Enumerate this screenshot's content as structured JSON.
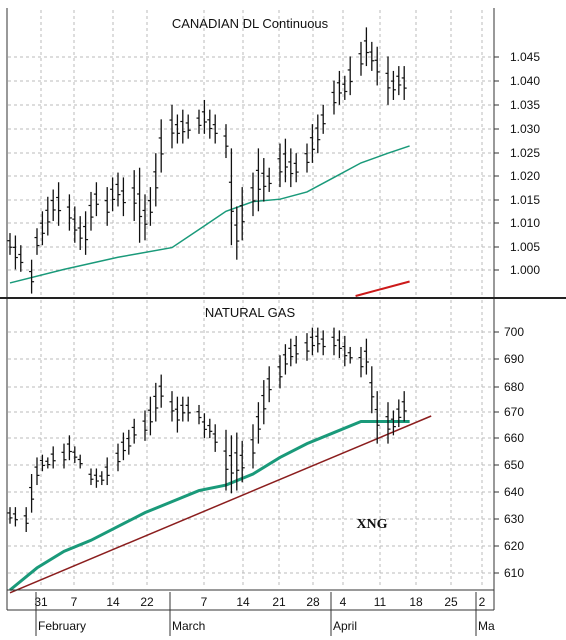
{
  "chart_data": [
    {
      "type": "ohlc",
      "title": "CANADIAN DL Continuous",
      "ylim": [
        0.9935,
        1.053
      ],
      "yticks": [
        "1.045",
        "1.040",
        "1.035",
        "1.030",
        "1.025",
        "1.020",
        "1.015",
        "1.010",
        "1.005",
        "1.000"
      ],
      "grid": true,
      "bars": [
        {
          "x": 0,
          "h": 1.0065,
          "l": 1.002
        },
        {
          "x": 1,
          "h": 1.006,
          "l": 0.999
        },
        {
          "x": 2,
          "h": 1.004,
          "l": 0.9985
        },
        {
          "x": 4,
          "h": 1.001,
          "l": 0.994
        },
        {
          "x": 5,
          "h": 1.0075,
          "l": 1.002
        },
        {
          "x": 6,
          "h": 1.011,
          "l": 1.004
        },
        {
          "x": 7,
          "h": 1.014,
          "l": 1.006
        },
        {
          "x": 8,
          "h": 1.0155,
          "l": 1.009
        },
        {
          "x": 9,
          "h": 1.017,
          "l": 1.008
        },
        {
          "x": 11,
          "h": 1.0145,
          "l": 1.007
        },
        {
          "x": 12,
          "h": 1.012,
          "l": 1.0045
        },
        {
          "x": 13,
          "h": 1.01,
          "l": 1.003
        },
        {
          "x": 14,
          "h": 1.011,
          "l": 1.002
        },
        {
          "x": 15,
          "h": 1.015,
          "l": 1.007
        },
        {
          "x": 16,
          "h": 1.017,
          "l": 1.01
        },
        {
          "x": 18,
          "h": 1.016,
          "l": 1.008
        },
        {
          "x": 19,
          "h": 1.018,
          "l": 1.011
        },
        {
          "x": 20,
          "h": 1.019,
          "l": 1.012
        },
        {
          "x": 21,
          "h": 1.018,
          "l": 1.01
        },
        {
          "x": 23,
          "h": 1.0195,
          "l": 1.009
        },
        {
          "x": 24,
          "h": 1.02,
          "l": 1.0045
        },
        {
          "x": 25,
          "h": 1.0145,
          "l": 1.005
        },
        {
          "x": 26,
          "h": 1.016,
          "l": 1.008
        },
        {
          "x": 27,
          "h": 1.023,
          "l": 1.012
        },
        {
          "x": 28,
          "h": 1.03,
          "l": 1.019
        },
        {
          "x": 30,
          "h": 1.033,
          "l": 1.024
        },
        {
          "x": 31,
          "h": 1.031,
          "l": 1.025
        },
        {
          "x": 32,
          "h": 1.032,
          "l": 1.025
        },
        {
          "x": 33,
          "h": 1.031,
          "l": 1.026
        },
        {
          "x": 35,
          "h": 1.032,
          "l": 1.027
        },
        {
          "x": 36,
          "h": 1.034,
          "l": 1.027
        },
        {
          "x": 37,
          "h": 1.032,
          "l": 1.026
        },
        {
          "x": 38,
          "h": 1.031,
          "l": 1.025
        },
        {
          "x": 40,
          "h": 1.029,
          "l": 1.022
        },
        {
          "x": 41,
          "h": 1.024,
          "l": 1.004
        },
        {
          "x": 42,
          "h": 1.012,
          "l": 1.001
        },
        {
          "x": 43,
          "h": 1.016,
          "l": 1.005
        },
        {
          "x": 45,
          "h": 1.019,
          "l": 1.01
        },
        {
          "x": 46,
          "h": 1.024,
          "l": 1.011
        },
        {
          "x": 47,
          "h": 1.022,
          "l": 1.013
        },
        {
          "x": 48,
          "h": 1.02,
          "l": 1.015
        },
        {
          "x": 50,
          "h": 1.025,
          "l": 1.016
        },
        {
          "x": 51,
          "h": 1.026,
          "l": 1.017
        },
        {
          "x": 52,
          "h": 1.024,
          "l": 1.016
        },
        {
          "x": 53,
          "h": 1.023,
          "l": 1.017
        },
        {
          "x": 55,
          "h": 1.025,
          "l": 1.019
        },
        {
          "x": 56,
          "h": 1.029,
          "l": 1.021
        },
        {
          "x": 57,
          "h": 1.031,
          "l": 1.023
        },
        {
          "x": 58,
          "h": 1.033,
          "l": 1.027
        },
        {
          "x": 60,
          "h": 1.038,
          "l": 1.031
        },
        {
          "x": 61,
          "h": 1.04,
          "l": 1.033
        },
        {
          "x": 62,
          "h": 1.039,
          "l": 1.034
        },
        {
          "x": 63,
          "h": 1.043,
          "l": 1.035
        },
        {
          "x": 65,
          "h": 1.046,
          "l": 1.039
        },
        {
          "x": 66,
          "h": 1.049,
          "l": 1.041
        },
        {
          "x": 67,
          "h": 1.046,
          "l": 1.04
        },
        {
          "x": 68,
          "h": 1.045,
          "l": 1.037
        },
        {
          "x": 70,
          "h": 1.043,
          "l": 1.033
        },
        {
          "x": 71,
          "h": 1.04,
          "l": 1.034
        },
        {
          "x": 72,
          "h": 1.041,
          "l": 1.035
        },
        {
          "x": 73,
          "h": 1.041,
          "l": 1.034
        }
      ],
      "moving_average": {
        "color": "#1a9a7a",
        "x": [
          0,
          10,
          20,
          30,
          36,
          40,
          45,
          50,
          55,
          60,
          65,
          70,
          74
        ],
        "y": [
          0.9962,
          0.999,
          1.0015,
          1.0035,
          1.008,
          1.011,
          1.013,
          1.0135,
          1.015,
          1.018,
          1.021,
          1.023,
          1.0245
        ]
      },
      "trendline": {
        "color": "#cc1a1a",
        "x": [
          64,
          74
        ],
        "y": [
          0.9935,
          0.9965
        ]
      }
    },
    {
      "type": "ohlc",
      "title": "NATURAL GAS",
      "label": "XNG",
      "ylim": [
        602,
        707
      ],
      "yticks": [
        "700",
        "690",
        "680",
        "670",
        "660",
        "650",
        "640",
        "630",
        "620",
        "610"
      ],
      "grid": true,
      "bars": [
        {
          "x": 0,
          "h": 632,
          "l": 626
        },
        {
          "x": 1,
          "h": 632,
          "l": 625
        },
        {
          "x": 3,
          "h": 632,
          "l": 623
        },
        {
          "x": 4,
          "h": 644,
          "l": 630
        },
        {
          "x": 5,
          "h": 650,
          "l": 640
        },
        {
          "x": 6,
          "h": 651,
          "l": 645
        },
        {
          "x": 7,
          "h": 650,
          "l": 646
        },
        {
          "x": 8,
          "h": 654,
          "l": 646
        },
        {
          "x": 10,
          "h": 655,
          "l": 646
        },
        {
          "x": 11,
          "h": 658,
          "l": 649
        },
        {
          "x": 12,
          "h": 654,
          "l": 648
        },
        {
          "x": 13,
          "h": 651,
          "l": 646
        },
        {
          "x": 15,
          "h": 646,
          "l": 640
        },
        {
          "x": 16,
          "h": 646,
          "l": 639
        },
        {
          "x": 17,
          "h": 645,
          "l": 640
        },
        {
          "x": 18,
          "h": 650,
          "l": 640
        },
        {
          "x": 20,
          "h": 655,
          "l": 645
        },
        {
          "x": 21,
          "h": 659,
          "l": 649
        },
        {
          "x": 22,
          "h": 660,
          "l": 651
        },
        {
          "x": 23,
          "h": 664,
          "l": 655
        },
        {
          "x": 25,
          "h": 667,
          "l": 656
        },
        {
          "x": 26,
          "h": 672,
          "l": 658
        },
        {
          "x": 27,
          "h": 677,
          "l": 663
        },
        {
          "x": 28,
          "h": 680,
          "l": 668
        },
        {
          "x": 30,
          "h": 674,
          "l": 663
        },
        {
          "x": 31,
          "h": 672,
          "l": 659
        },
        {
          "x": 32,
          "h": 672,
          "l": 663
        },
        {
          "x": 33,
          "h": 672,
          "l": 663
        },
        {
          "x": 35,
          "h": 669,
          "l": 662
        },
        {
          "x": 36,
          "h": 666,
          "l": 657
        },
        {
          "x": 37,
          "h": 664,
          "l": 657
        },
        {
          "x": 38,
          "h": 662,
          "l": 652
        },
        {
          "x": 40,
          "h": 660,
          "l": 638
        },
        {
          "x": 41,
          "h": 658,
          "l": 637
        },
        {
          "x": 42,
          "h": 659,
          "l": 638
        },
        {
          "x": 43,
          "h": 656,
          "l": 641
        },
        {
          "x": 45,
          "h": 662,
          "l": 646
        },
        {
          "x": 46,
          "h": 670,
          "l": 655
        },
        {
          "x": 47,
          "h": 678,
          "l": 662
        },
        {
          "x": 48,
          "h": 683,
          "l": 670
        },
        {
          "x": 50,
          "h": 687,
          "l": 675
        },
        {
          "x": 51,
          "h": 691,
          "l": 680
        },
        {
          "x": 52,
          "h": 693,
          "l": 683
        },
        {
          "x": 53,
          "h": 694,
          "l": 684
        },
        {
          "x": 55,
          "h": 695,
          "l": 685
        },
        {
          "x": 56,
          "h": 697,
          "l": 687
        },
        {
          "x": 57,
          "h": 697,
          "l": 688
        },
        {
          "x": 58,
          "h": 696,
          "l": 687
        },
        {
          "x": 60,
          "h": 697,
          "l": 687
        },
        {
          "x": 61,
          "h": 696,
          "l": 686
        },
        {
          "x": 62,
          "h": 694,
          "l": 683
        },
        {
          "x": 63,
          "h": 690,
          "l": 684
        },
        {
          "x": 65,
          "h": 690,
          "l": 679
        },
        {
          "x": 66,
          "h": 693,
          "l": 680
        },
        {
          "x": 67,
          "h": 683,
          "l": 666
        },
        {
          "x": 68,
          "h": 674,
          "l": 655
        },
        {
          "x": 70,
          "h": 670,
          "l": 655
        },
        {
          "x": 71,
          "h": 667,
          "l": 658
        },
        {
          "x": 72,
          "h": 671,
          "l": 661
        },
        {
          "x": 73,
          "h": 674,
          "l": 663
        }
      ],
      "moving_average": {
        "color": "#1a9a7a",
        "x": [
          0,
          5,
          10,
          15,
          20,
          25,
          30,
          35,
          40,
          45,
          50,
          55,
          60,
          65,
          70,
          74
        ],
        "y": [
          602,
          610,
          616,
          620,
          625,
          630,
          634,
          638,
          640,
          644,
          650,
          655,
          659,
          663,
          663,
          663
        ]
      },
      "trendline": {
        "color": "#8b1e1e",
        "x": [
          0,
          78
        ],
        "y": [
          601,
          665
        ]
      }
    }
  ],
  "x_axis": {
    "day_labels": [
      "31",
      "7",
      "14",
      "22",
      "7",
      "14",
      "21",
      "28",
      "4",
      "11",
      "18",
      "25",
      "2"
    ],
    "month_labels": [
      "February",
      "March",
      "April",
      "Ma"
    ]
  }
}
